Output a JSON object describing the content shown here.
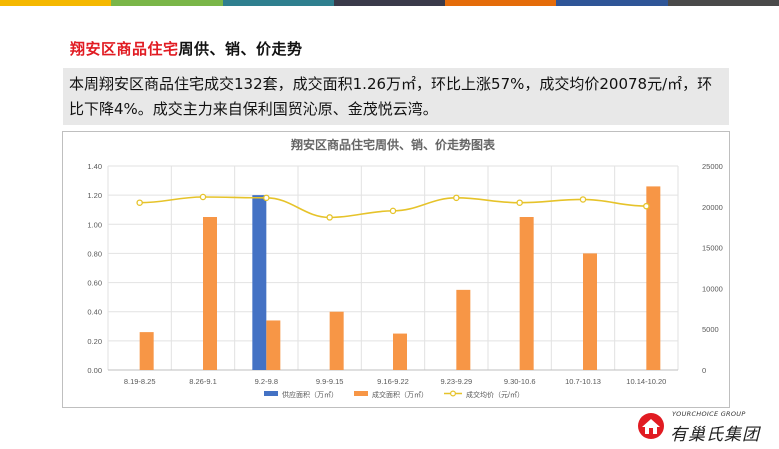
{
  "topbar_colors": [
    "#f5b800",
    "#7ab648",
    "#2f7f8f",
    "#3a3a4a",
    "#e46c0a",
    "#2f5597",
    "#4a4a4a"
  ],
  "heading": {
    "red_part": "翔安区商品住宅",
    "black_part": "周供、销、价走势"
  },
  "summary": {
    "text": "本周翔安区商品住宅成交132套，成交面积1.26万㎡，环比上涨57%，成交均价20078元/㎡，环比下降4%。成交主力来自保利国贸沁原、金茂悦云湾。"
  },
  "logo": {
    "en": "YOURCHOICE GROUP",
    "cn": "有巢氏集团"
  },
  "chart_data": {
    "type": "bar",
    "title": "翔安区商品住宅周供、销、价走势图表",
    "categories": [
      "8.19-8.25",
      "8.26-9.1",
      "9.2-9.8",
      "9.9-9.15",
      "9.16-9.22",
      "9.23-9.29",
      "9.30-10.6",
      "10.7-10.13",
      "10.14-10.20"
    ],
    "left_axis": {
      "min": 0,
      "max": 1.4,
      "ticks": [
        "0.00",
        "0.20",
        "0.40",
        "0.60",
        "0.80",
        "1.00",
        "1.20",
        "1.40"
      ]
    },
    "right_axis": {
      "min": 0,
      "max": 25000,
      "ticks": [
        "0",
        "5000",
        "10000",
        "15000",
        "20000",
        "25000"
      ]
    },
    "grid": true,
    "legend_position": "bottom",
    "series": [
      {
        "name": "供应面积（万㎡）",
        "type": "bar",
        "axis": "left",
        "color": "#4472c4",
        "values": [
          0,
          0,
          1.2,
          0,
          0,
          0,
          0,
          0,
          0
        ]
      },
      {
        "name": "成交面积（万㎡）",
        "type": "bar",
        "axis": "left",
        "color": "#f79646",
        "values": [
          0.26,
          1.05,
          0.34,
          0.4,
          0.25,
          0.55,
          1.05,
          0.8,
          1.26
        ]
      },
      {
        "name": "成交均价（元/㎡）",
        "type": "line",
        "axis": "right",
        "color": "#e6c32a",
        "values": [
          20500,
          21200,
          21100,
          18700,
          19500,
          21100,
          20500,
          20900,
          20078
        ]
      }
    ]
  }
}
